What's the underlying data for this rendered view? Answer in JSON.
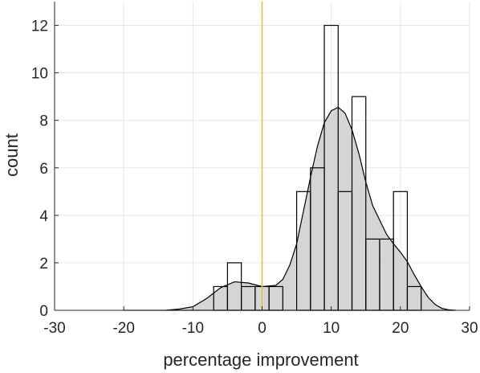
{
  "chart_data": {
    "type": "bar",
    "xlabel": "percentage improvement",
    "ylabel": "count",
    "xlim": [
      -30,
      30
    ],
    "ylim": [
      0,
      13
    ],
    "xticks": [
      -30,
      -20,
      -10,
      0,
      10,
      20,
      30
    ],
    "yticks": [
      0,
      2,
      4,
      6,
      8,
      10,
      12
    ],
    "grid": true,
    "bin_width": 2,
    "histogram": [
      {
        "x0": -7,
        "x1": -5,
        "count": 1
      },
      {
        "x0": -5,
        "x1": -3,
        "count": 2
      },
      {
        "x0": -3,
        "x1": -1,
        "count": 1
      },
      {
        "x0": -1,
        "x1": 1,
        "count": 1
      },
      {
        "x0": 1,
        "x1": 3,
        "count": 1
      },
      {
        "x0": 5,
        "x1": 7,
        "count": 5
      },
      {
        "x0": 7,
        "x1": 9,
        "count": 6
      },
      {
        "x0": 9,
        "x1": 11,
        "count": 12
      },
      {
        "x0": 11,
        "x1": 13,
        "count": 5
      },
      {
        "x0": 13,
        "x1": 15,
        "count": 9
      },
      {
        "x0": 15,
        "x1": 17,
        "count": 3
      },
      {
        "x0": 17,
        "x1": 19,
        "count": 3
      },
      {
        "x0": 19,
        "x1": 21,
        "count": 5
      },
      {
        "x0": 21,
        "x1": 23,
        "count": 1
      }
    ],
    "density_curve": {
      "x": [
        -20,
        -14,
        -12,
        -10,
        -8,
        -6,
        -4,
        -2,
        0,
        2,
        3,
        4,
        5,
        6,
        7,
        8,
        9,
        10,
        11,
        12,
        13,
        14,
        15,
        16,
        17,
        18,
        19,
        20,
        21,
        22,
        23,
        24,
        25,
        26,
        27,
        28
      ],
      "y": [
        0,
        0,
        0.05,
        0.15,
        0.5,
        0.95,
        1.2,
        1.15,
        1.0,
        1.05,
        1.3,
        1.9,
        2.8,
        4.2,
        5.6,
        6.9,
        7.9,
        8.4,
        8.55,
        8.3,
        7.6,
        6.6,
        5.4,
        4.4,
        3.8,
        3.2,
        2.8,
        2.45,
        2.05,
        1.5,
        1.0,
        0.55,
        0.25,
        0.08,
        0.02,
        0
      ]
    },
    "reference_line": {
      "x": 0,
      "color": "#e8b84a"
    }
  }
}
